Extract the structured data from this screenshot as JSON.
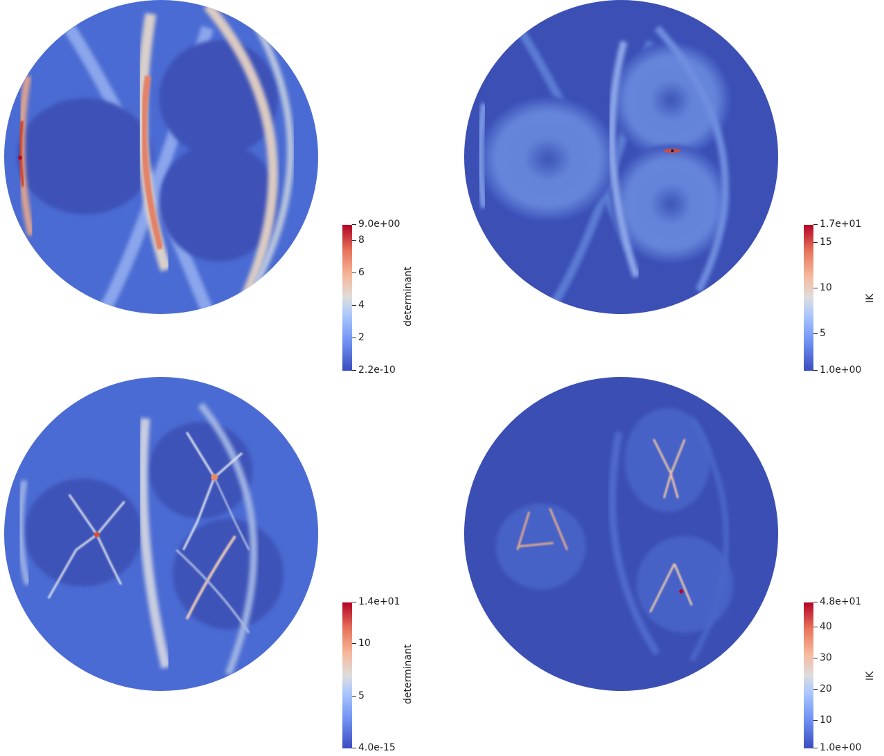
{
  "panels": [
    {
      "id": "top-left",
      "title": "determinant",
      "ticks": [
        {
          "label": "9.0e+00",
          "frac": 1.0
        },
        {
          "label": "8",
          "frac": 0.889
        },
        {
          "label": "6",
          "frac": 0.667
        },
        {
          "label": "4",
          "frac": 0.444
        },
        {
          "label": "2",
          "frac": 0.222
        },
        {
          "label": "2.2e-10",
          "frac": 0.0
        }
      ]
    },
    {
      "id": "top-right",
      "title": "IK",
      "ticks": [
        {
          "label": "1.7e+01",
          "frac": 1.0
        },
        {
          "label": "15",
          "frac": 0.875
        },
        {
          "label": "10",
          "frac": 0.5625
        },
        {
          "label": "5",
          "frac": 0.25
        },
        {
          "label": "1.0e+00",
          "frac": 0.0
        }
      ]
    },
    {
      "id": "bottom-left",
      "title": "determinant",
      "ticks": [
        {
          "label": "1.4e+01",
          "frac": 1.0
        },
        {
          "label": "10",
          "frac": 0.714
        },
        {
          "label": "5",
          "frac": 0.357
        },
        {
          "label": "4.0e-15",
          "frac": 0.0
        }
      ]
    },
    {
      "id": "bottom-right",
      "title": "IK",
      "ticks": [
        {
          "label": "4.8e+01",
          "frac": 1.0
        },
        {
          "label": "40",
          "frac": 0.83
        },
        {
          "label": "30",
          "frac": 0.617
        },
        {
          "label": "20",
          "frac": 0.404
        },
        {
          "label": "10",
          "frac": 0.191
        },
        {
          "label": "1.0e+00",
          "frac": 0.0
        }
      ]
    }
  ],
  "colormap": {
    "low": "#3b4cc0",
    "mid": "#dddddd",
    "high": "#b40426"
  }
}
